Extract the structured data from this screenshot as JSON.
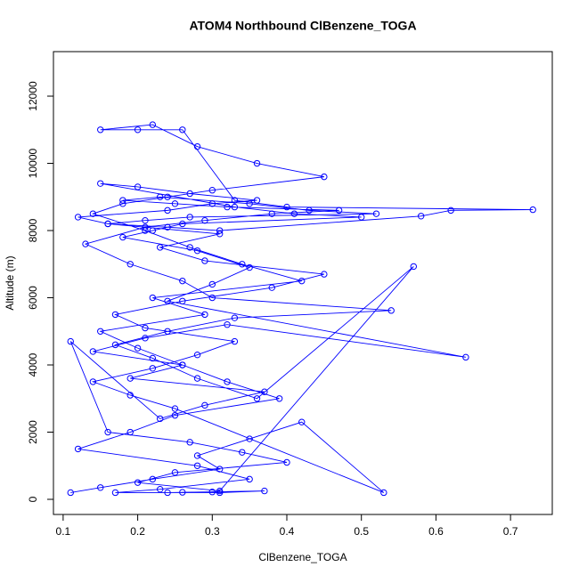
{
  "chart_data": {
    "type": "line",
    "title": "ATOM4 Northbound ClBenzene_TOGA",
    "x_label": "ClBenzene_TOGA",
    "y_label": "Altitude (m)",
    "color": "#0000ff",
    "xlim": [
      0.087,
      0.756
    ],
    "ylim": [
      -450,
      13325
    ],
    "xticks": [
      0.1,
      0.2,
      0.3,
      0.4,
      0.5,
      0.6,
      0.7
    ],
    "yticks": [
      0,
      2000,
      4000,
      6000,
      8000,
      10000,
      12000
    ],
    "x": [
      0.11,
      0.15,
      0.22,
      0.31,
      0.28,
      0.35,
      0.42,
      0.53,
      0.25,
      0.19,
      0.14,
      0.22,
      0.28,
      0.33,
      0.21,
      0.17,
      0.26,
      0.38,
      0.45,
      0.29,
      0.23,
      0.31,
      0.16,
      0.12,
      0.24,
      0.3,
      0.36,
      0.27,
      0.2,
      0.15,
      0.33,
      0.41,
      0.5,
      0.26,
      0.22,
      0.18,
      0.28,
      0.35,
      0.3,
      0.24,
      0.64,
      0.32,
      0.21,
      0.14,
      0.26,
      0.19,
      0.37,
      0.29,
      0.23,
      0.11,
      0.16,
      0.27,
      0.34,
      0.4,
      0.25,
      0.2,
      0.31,
      0.57,
      0.36,
      0.28,
      0.22,
      0.17,
      0.24,
      0.33,
      0.54,
      0.3,
      0.26,
      0.19,
      0.13,
      0.21,
      0.29,
      0.38,
      0.47,
      0.32,
      0.25,
      0.18,
      0.23,
      0.35,
      0.43,
      0.52,
      0.27,
      0.21,
      0.16,
      0.24,
      0.31,
      0.58,
      0.62,
      0.73,
      0.4,
      0.33,
      0.26,
      0.2,
      0.15,
      0.22,
      0.28,
      0.36,
      0.45,
      0.3,
      0.24,
      0.18,
      0.14,
      0.21,
      0.27,
      0.34,
      0.42,
      0.22,
      0.29,
      0.15,
      0.2,
      0.26,
      0.32,
      0.39,
      0.25,
      0.19,
      0.12,
      0.28,
      0.35,
      0.23,
      0.17,
      0.31,
      0.37,
      0.24,
      0.3,
      0.26
    ],
    "values": [
      200,
      350,
      600,
      900,
      1300,
      1800,
      2300,
      200,
      2700,
      3100,
      3500,
      3900,
      4300,
      4700,
      5100,
      5500,
      5900,
      6300,
      6700,
      7100,
      7500,
      7900,
      8200,
      8400,
      8600,
      8800,
      8900,
      9100,
      9300,
      9400,
      8700,
      8500,
      8400,
      8200,
      8000,
      7800,
      7400,
      6900,
      6400,
      5900,
      4230,
      5200,
      4800,
      4400,
      4000,
      3600,
      3200,
      2800,
      2400,
      4700,
      2000,
      1700,
      1400,
      1100,
      800,
      500,
      250,
      6930,
      3000,
      3600,
      4200,
      4600,
      5000,
      5400,
      5620,
      6000,
      6500,
      7000,
      7600,
      8100,
      8300,
      8500,
      8600,
      8700,
      8800,
      8900,
      9000,
      8800,
      8600,
      8500,
      8400,
      8300,
      8200,
      8100,
      8000,
      8430,
      8600,
      8620,
      8700,
      8900,
      11000,
      11000,
      11000,
      11150,
      10500,
      10000,
      9600,
      9200,
      9000,
      8800,
      8500,
      8000,
      7500,
      7000,
      6500,
      6000,
      5500,
      5000,
      4500,
      4000,
      3500,
      3000,
      2500,
      2000,
      1500,
      1000,
      600,
      300,
      200,
      200,
      250,
      200,
      220,
      210
    ]
  }
}
